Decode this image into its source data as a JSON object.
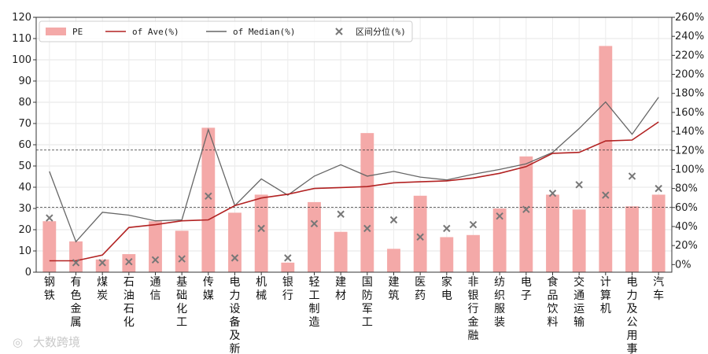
{
  "chart_data": {
    "type": "bar",
    "categories": [
      "钢铁",
      "有色金属",
      "煤炭",
      "石油石化",
      "通信",
      "基础化工",
      "传媒",
      "电力设备及新",
      "机械",
      "银行",
      "轻工制造",
      "建材",
      "国防军工",
      "建筑",
      "医药",
      "家电",
      "非银行金融",
      "纺织服装",
      "电子",
      "食品饮料",
      "交通运输",
      "计算机",
      "电力及公用事",
      "汽车"
    ],
    "y_left": {
      "min": 0,
      "max": 120,
      "ticks": [
        0,
        10,
        20,
        30,
        40,
        50,
        60,
        70,
        80,
        90,
        100,
        110,
        120
      ]
    },
    "y_right": {
      "min": -8,
      "max": 260,
      "ticks": [
        0,
        20,
        40,
        60,
        80,
        100,
        120,
        140,
        160,
        180,
        200,
        220,
        240,
        260
      ],
      "tick_labels": [
        "0%",
        "20%",
        "40%",
        "60%",
        "80%",
        "100%",
        "120%",
        "140%",
        "160%",
        "180%",
        "200%",
        "220%",
        "240%",
        "260%"
      ]
    },
    "reference_lines_left": [
      57.5,
      30.5
    ],
    "grid": true,
    "legend_position": "top-left",
    "series": [
      {
        "name": "PE",
        "type": "bar",
        "axis": "left",
        "color": "#f4a9a8",
        "values": [
          24,
          14.5,
          6,
          8.5,
          24,
          19.5,
          68,
          28,
          36.5,
          4.5,
          33,
          19,
          65.5,
          11,
          36,
          16.5,
          17.5,
          30,
          54.5,
          36.5,
          29.5,
          106.5,
          31,
          36.5
        ]
      },
      {
        "name": "of Ave(%)",
        "type": "line",
        "axis": "right",
        "color": "#b22222",
        "values": [
          4,
          4,
          10,
          39,
          42,
          46,
          47,
          62,
          70,
          74,
          80,
          81,
          82,
          86,
          87,
          88,
          91,
          96,
          103,
          117,
          118,
          130,
          131,
          150
        ]
      },
      {
        "name": "of Median(%)",
        "type": "line",
        "axis": "right",
        "color": "#666666",
        "values": [
          98,
          24,
          55,
          52,
          46,
          47,
          142,
          62,
          90,
          73,
          93,
          105,
          93,
          98,
          92,
          89,
          95,
          100,
          106,
          118,
          143,
          171,
          137,
          176
        ]
      },
      {
        "name": "区间分位(%)",
        "type": "scatter",
        "axis": "right",
        "color": "#777777",
        "values": [
          49,
          2,
          2,
          3,
          5,
          6,
          72,
          7,
          38,
          7,
          43,
          53,
          38,
          47,
          29,
          38,
          42,
          51,
          58,
          75,
          84,
          73,
          93,
          80
        ]
      }
    ]
  },
  "watermark": "大数跨境"
}
